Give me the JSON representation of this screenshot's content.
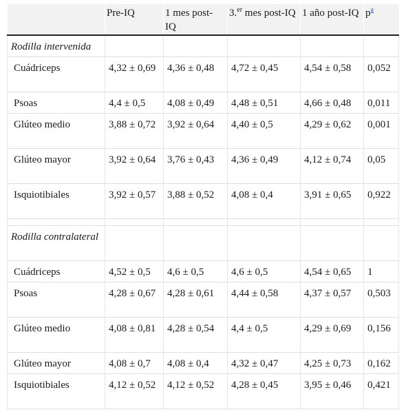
{
  "header": {
    "c0": "",
    "c1": "Pre-IQ",
    "c2": "1 mes post-IQ",
    "c3_pre": "3.",
    "c3_sup": "er",
    "c3_post": " mes post-IQ",
    "c4": "1 año post-IQ",
    "c5": "p",
    "c5_note": "a"
  },
  "sections": [
    {
      "title": "Rodilla intervenida",
      "rows": [
        {
          "muscle": "Cuádriceps",
          "pre": "4,32 ± 0,69",
          "m1": "4,36 ± 0,48",
          "m3": "4,72 ± 0,45",
          "y1": "4,54 ± 0,58",
          "p": "0,052"
        },
        {
          "muscle": "Psoas",
          "pre": "4,4 ± 0,5",
          "m1": "4,08 ± 0,49",
          "m3": "4,48 ± 0,51",
          "y1": "4,66 ± 0,48",
          "p": "0,011"
        },
        {
          "muscle": "Glúteo medio",
          "pre": "3,88 ± 0,72",
          "m1": "3,92 ± 0,64",
          "m3": "4,40 ± 0,5",
          "y1": "4,29 ± 0,62",
          "p": "0,001"
        },
        {
          "muscle": "Glúteo mayor",
          "pre": "3,92 ± 0,64",
          "m1": "3,76 ± 0,43",
          "m3": "4,36 ± 0,49",
          "y1": "4,12 ± 0,74",
          "p": "0,05"
        },
        {
          "muscle": "Isquiotibiales",
          "pre": "3,92 ± 0,57",
          "m1": "3,88 ± 0,52",
          "m3": "4,08 ± 0,4",
          "y1": "3,91 ± 0,65",
          "p": "0,922"
        }
      ]
    },
    {
      "title": "Rodilla contralateral",
      "rows": [
        {
          "muscle": "Cuádriceps",
          "pre": "4,52 ± 0,5",
          "m1": "4,6 ± 0,5",
          "m3": "4,6 ± 0,5",
          "y1": "4,54 ± 0,65",
          "p": "1"
        },
        {
          "muscle": "Psoas",
          "pre": "4,28 ± 0,67",
          "m1": "4,28 ± 0,61",
          "m3": "4,44 ± 0,58",
          "y1": "4,37 ± 0,57",
          "p": "0,503"
        },
        {
          "muscle": "Glúteo medio",
          "pre": "4,08 ± 0,81",
          "m1": "4,28 ± 0,54",
          "m3": "4,4 ± 0,5",
          "y1": "4,29 ± 0,69",
          "p": "0,156"
        },
        {
          "muscle": "Glúteo mayor",
          "pre": "4,08 ± 0,7",
          "m1": "4,08 ± 0,4",
          "m3": "4,32 ± 0,47",
          "y1": "4,25 ± 0,73",
          "p": "0,162"
        },
        {
          "muscle": "Isquiotibiales",
          "pre": "4,12 ± 0,52",
          "m1": "4,12 ± 0,52",
          "m3": "4,28 ± 0,45",
          "y1": "3,95 ± 0,46",
          "p": "0,421"
        }
      ]
    }
  ]
}
